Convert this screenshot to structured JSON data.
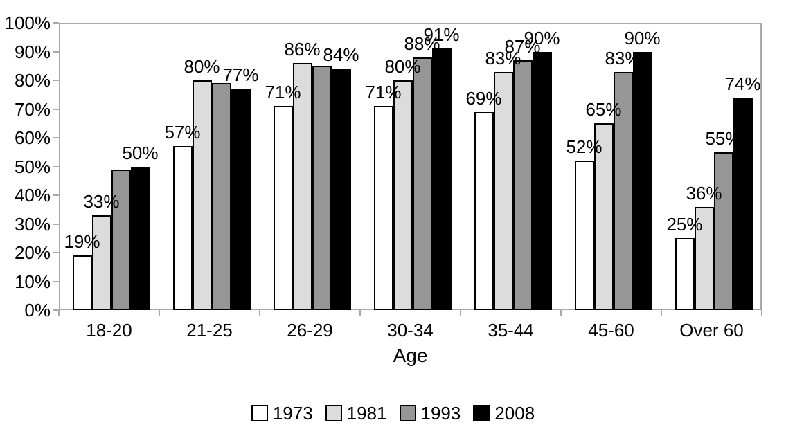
{
  "chart_data": {
    "type": "bar",
    "title": "",
    "xlabel": "Age",
    "ylabel": "",
    "categories": [
      "18-20",
      "21-25",
      "26-29",
      "30-34",
      "35-44",
      "45-60",
      "Over 60"
    ],
    "series": [
      {
        "name": "1973",
        "color": "#ffffff",
        "values": [
          19,
          57,
          71,
          71,
          69,
          52,
          25
        ],
        "labels": [
          "19%",
          "57%",
          "71%",
          "71%",
          "69%",
          "52%",
          "25%"
        ]
      },
      {
        "name": "1981",
        "color": "#dcdcdc",
        "values": [
          33,
          80,
          86,
          80,
          83,
          65,
          36
        ],
        "labels": [
          "33%",
          "80%",
          "86%",
          "80%",
          "83%",
          "65%",
          "36%"
        ]
      },
      {
        "name": "1993",
        "color": "#969696",
        "values": [
          49,
          79,
          85,
          88,
          87,
          83,
          55
        ],
        "labels": [
          null,
          null,
          null,
          "88%",
          "87%",
          "83%",
          "55%"
        ]
      },
      {
        "name": "2008",
        "color": "#000000",
        "values": [
          50,
          77,
          84,
          91,
          90,
          90,
          74
        ],
        "labels": [
          "50%",
          "77%",
          "84%",
          "91%",
          "90%",
          "90%",
          "74%"
        ]
      }
    ],
    "ylim": [
      0,
      100
    ],
    "yticks": [
      "0%",
      "10%",
      "20%",
      "30%",
      "40%",
      "50%",
      "60%",
      "70%",
      "80%",
      "90%",
      "100%"
    ],
    "grid": "plot-border-only",
    "legend_position": "bottom"
  }
}
